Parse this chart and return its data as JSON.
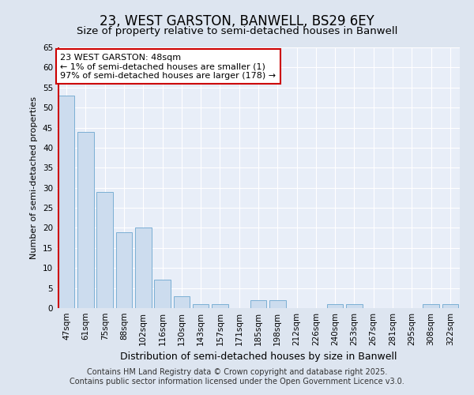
{
  "title": "23, WEST GARSTON, BANWELL, BS29 6EY",
  "subtitle": "Size of property relative to semi-detached houses in Banwell",
  "xlabel": "Distribution of semi-detached houses by size in Banwell",
  "ylabel": "Number of semi-detached properties",
  "footer1": "Contains HM Land Registry data © Crown copyright and database right 2025.",
  "footer2": "Contains public sector information licensed under the Open Government Licence v3.0.",
  "categories": [
    "47sqm",
    "61sqm",
    "75sqm",
    "88sqm",
    "102sqm",
    "116sqm",
    "130sqm",
    "143sqm",
    "157sqm",
    "171sqm",
    "185sqm",
    "198sqm",
    "212sqm",
    "226sqm",
    "240sqm",
    "253sqm",
    "267sqm",
    "281sqm",
    "295sqm",
    "308sqm",
    "322sqm"
  ],
  "values": [
    53,
    44,
    29,
    19,
    20,
    7,
    3,
    1,
    1,
    0,
    2,
    2,
    0,
    0,
    1,
    1,
    0,
    0,
    0,
    1,
    1
  ],
  "bar_color": "#ccdcee",
  "bar_edge_color": "#7bafd4",
  "highlight_color": "#cc0000",
  "ylim": [
    0,
    65
  ],
  "yticks": [
    0,
    5,
    10,
    15,
    20,
    25,
    30,
    35,
    40,
    45,
    50,
    55,
    60,
    65
  ],
  "annotation_line1": "23 WEST GARSTON: 48sqm",
  "annotation_line2": "← 1% of semi-detached houses are smaller (1)",
  "annotation_line3": "97% of semi-detached houses are larger (178) →",
  "annotation_color": "#cc0000",
  "background_color": "#dde5f0",
  "plot_bg_color": "#e8eef8",
  "title_fontsize": 12,
  "subtitle_fontsize": 9.5,
  "xlabel_fontsize": 9,
  "ylabel_fontsize": 8,
  "tick_fontsize": 7.5,
  "footer_fontsize": 7,
  "annotation_fontsize": 8
}
